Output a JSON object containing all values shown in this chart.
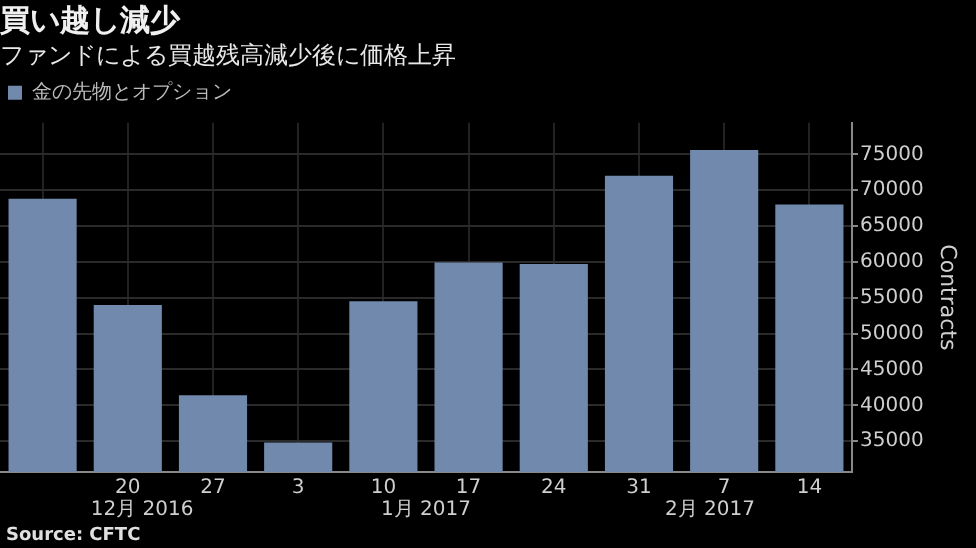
{
  "chart_data": {
    "type": "bar",
    "title": "買い越し減少",
    "subtitle": "ファンドによる買越残高減少後に価格上昇",
    "categories": [
      null,
      "20",
      "27",
      "3",
      "10",
      "17",
      "24",
      "31",
      "7",
      "14"
    ],
    "series": [
      {
        "name": "金の先物とオプション",
        "color": "#7189ac",
        "values": [
          68800,
          54000,
          41400,
          34800,
          54500,
          59900,
          59700,
          72000,
          75600,
          68000
        ]
      }
    ],
    "ylabel": "Contracts",
    "ylim": [
      30700,
      79400
    ],
    "yticks": [
      35000,
      40000,
      45000,
      50000,
      55000,
      60000,
      65000,
      70000,
      75000
    ],
    "grid": true,
    "legend": "top left",
    "annotations": [
      "12月 2016",
      "1月 2017",
      "2月 2017",
      "Source: CFTC"
    ]
  }
}
